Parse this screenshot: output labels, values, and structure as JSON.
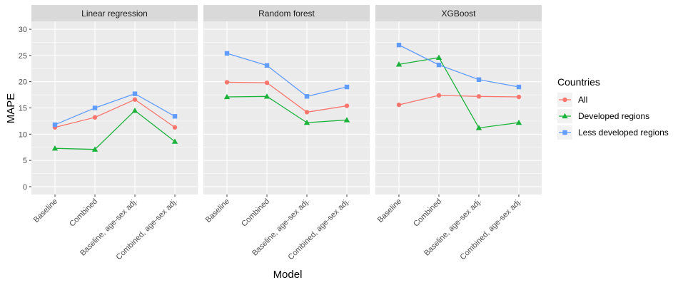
{
  "chart_data": {
    "type": "line",
    "xlabel": "Model",
    "ylabel": "MAPE",
    "ylim": [
      -1.5,
      31.5
    ],
    "yticks": [
      0,
      5,
      10,
      15,
      20,
      25,
      30
    ],
    "categories": [
      "Baseline",
      "Combined",
      "Baseline, age-sex adj.",
      "Combined, age-sex adj."
    ],
    "grid": true,
    "legend": {
      "title": "Countries",
      "position": "right",
      "entries": [
        {
          "name": "All",
          "color": "#F8766D",
          "marker": "circle"
        },
        {
          "name": "Developed regions",
          "color": "#1BB23A",
          "marker": "triangle"
        },
        {
          "name": "Less developed regions",
          "color": "#619CFF",
          "marker": "square"
        }
      ]
    },
    "panels": [
      {
        "title": "Linear regression",
        "series": [
          {
            "name": "All",
            "values": [
              11.3,
              13.2,
              16.6,
              11.3
            ]
          },
          {
            "name": "Developed regions",
            "values": [
              7.3,
              7.1,
              14.5,
              8.6
            ]
          },
          {
            "name": "Less developed regions",
            "values": [
              11.8,
              15.0,
              17.7,
              13.4
            ]
          }
        ]
      },
      {
        "title": "Random forest",
        "series": [
          {
            "name": "All",
            "values": [
              19.9,
              19.8,
              14.2,
              15.4
            ]
          },
          {
            "name": "Developed regions",
            "values": [
              17.1,
              17.2,
              12.2,
              12.7
            ]
          },
          {
            "name": "Less developed regions",
            "values": [
              25.4,
              23.1,
              17.2,
              19.0
            ]
          }
        ]
      },
      {
        "title": "XGBoost",
        "series": [
          {
            "name": "All",
            "values": [
              15.6,
              17.4,
              17.2,
              17.1
            ]
          },
          {
            "name": "Developed regions",
            "values": [
              23.3,
              24.6,
              11.2,
              12.2
            ]
          },
          {
            "name": "Less developed regions",
            "values": [
              27.0,
              23.2,
              20.4,
              19.0
            ]
          }
        ]
      }
    ]
  }
}
